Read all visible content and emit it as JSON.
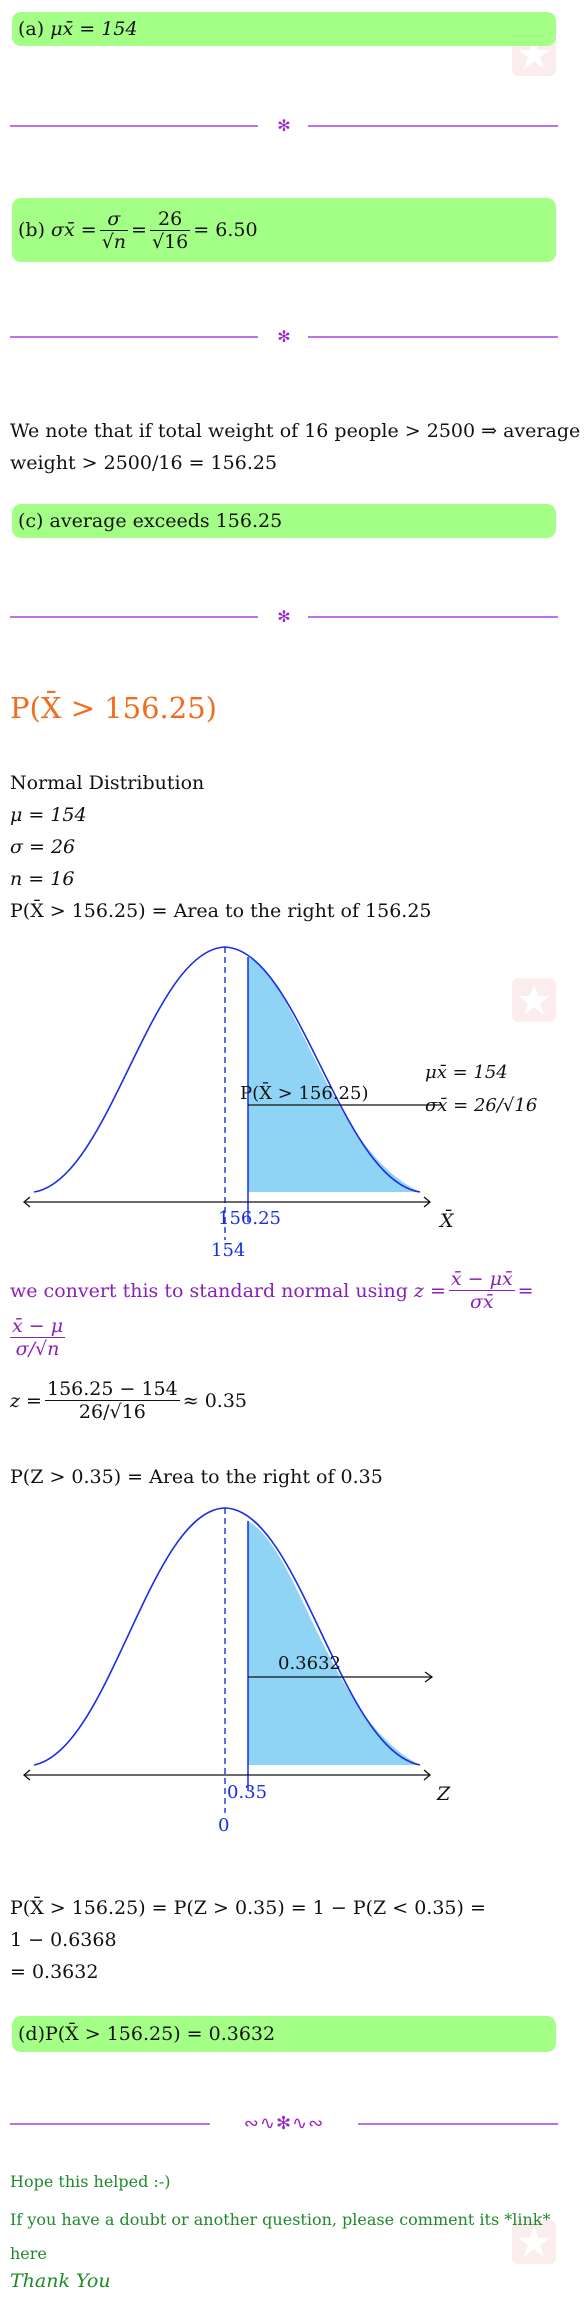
{
  "part_a": {
    "label": "(a)",
    "expr": "μx̄ = 154"
  },
  "part_b": {
    "label": "(b)",
    "lhs": "σx̄ =",
    "f1_num": "σ",
    "f1_den": "√n",
    "f2_num": "26",
    "f2_den": "√16",
    "result": "= 6.50"
  },
  "note": {
    "line1": "We note that if total weight of 16 people > 2500  ⇒ average",
    "line2": "weight > 2500/16 = 156.25"
  },
  "part_c": {
    "text": "(c) average exceeds 156.25"
  },
  "heading": "P(X̄ > 156.25)",
  "givens": {
    "title": "Normal Distribution",
    "mu": "μ = 154",
    "sigma": "σ = 26",
    "n": "n = 16",
    "area": "P(X̄ > 156.25) = Area to the right of 156.25"
  },
  "graph1": {
    "region_label": "P(X̄ > 156.25)",
    "mu_label": "μx̄ = 154",
    "sigma_label": "σx̄ = 26/√16",
    "cut_label": "156.25",
    "mean_label": "154",
    "axis_label": "X̄"
  },
  "convert": {
    "prefix": "we convert this to standard normal using",
    "z_eq": "z =",
    "num1": "x̄ − μx̄",
    "den1": "σx̄",
    "eq": "=",
    "num2": "x̄ − μ",
    "den2": "σ/√n"
  },
  "zcalc": {
    "lhs": "z =",
    "num": "156.25 − 154",
    "den": "26/√16",
    "result": "≈ 0.35"
  },
  "zarea": "P(Z > 0.35) = Area to the right of 0.35",
  "graph2": {
    "region_label": "0.3632",
    "cut_label": "0.35",
    "mean_label": "0",
    "axis_label": "Z"
  },
  "final": {
    "line1": "P(X̄ > 156.25) = P(Z > 0.35) = 1 − P(Z < 0.35) =",
    "line2": "1 − 0.6368",
    "line3": "= 0.3632"
  },
  "part_d": {
    "text": "(d)P(X̄ > 156.25) = 0.3632"
  },
  "closing": {
    "hope": "Hope this helped  :-)",
    "doubt1": "If you have a doubt or another question, please comment its *link*",
    "doubt2": "here",
    "thanks": "Thank You"
  },
  "colors": {
    "box": "#a3ff85",
    "divider": "#c070e8",
    "heading": "#f06d1e",
    "curve": "#1a2ee0",
    "shade": "#8fd3f5"
  }
}
